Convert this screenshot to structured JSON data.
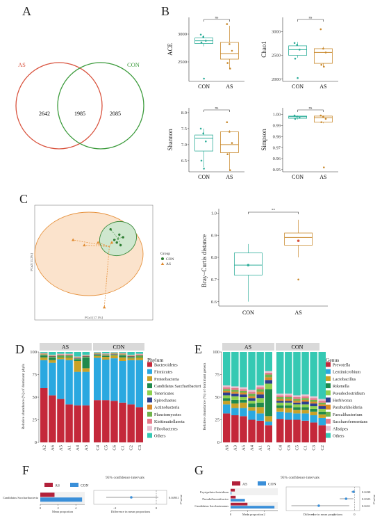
{
  "panels": {
    "A": {
      "label": "A",
      "set1": "AS",
      "set2": "CON",
      "only1": "2642",
      "both": "1985",
      "only2": "2085",
      "colors": {
        "AS": "#d9533e",
        "CON": "#3a9a3a"
      }
    },
    "B": {
      "label": "B",
      "groups": [
        "CON",
        "AS"
      ],
      "sig": "ns",
      "colors": {
        "CON": "#2fae9a",
        "AS": "#c98a2e"
      },
      "plots": [
        {
          "metric": "ACE",
          "ticks": [
            "2500",
            "3000"
          ],
          "ylim": [
            2150,
            3300
          ],
          "CON": {
            "q1": 2830,
            "med": 2880,
            "q3": 2930,
            "min": 2780,
            "max": 2980,
            "points": [
              2990,
              2950,
              2880,
              2850,
              2200
            ]
          },
          "AS": {
            "q1": 2550,
            "med": 2650,
            "q3": 2850,
            "min": 2380,
            "max": 3150,
            "points": [
              3180,
              2820,
              2700,
              2480,
              2380
            ]
          }
        },
        {
          "metric": "Chao1",
          "ticks": [
            "2000",
            "2500",
            "3000"
          ],
          "ylim": [
            1950,
            3300
          ],
          "CON": {
            "q1": 2500,
            "med": 2620,
            "q3": 2700,
            "min": 2450,
            "max": 2780,
            "points": [
              2760,
              2720,
              2620,
              2430,
              2020
            ]
          },
          "AS": {
            "q1": 2330,
            "med": 2560,
            "q3": 2640,
            "min": 2250,
            "max": 2680,
            "points": [
              3050,
              2640,
              2560,
              2300,
              2260
            ]
          }
        },
        {
          "metric": "Shannon",
          "ticks": [
            "6.5",
            "7.0",
            "7.5",
            "8.0"
          ],
          "ylim": [
            6.15,
            8.15
          ],
          "CON": {
            "q1": 6.8,
            "med": 7.2,
            "q3": 7.3,
            "min": 6.3,
            "max": 7.5,
            "points": [
              7.5,
              7.35,
              7.1,
              6.5,
              6.25
            ]
          },
          "AS": {
            "q1": 6.75,
            "med": 7.0,
            "q3": 7.4,
            "min": 6.2,
            "max": 7.45,
            "points": [
              7.7,
              7.4,
              7.05,
              6.7,
              6.2
            ]
          }
        },
        {
          "metric": "Simpson",
          "ticks": [
            "0.95",
            "0.96",
            "0.97",
            "0.98",
            "0.99",
            "1.00"
          ],
          "ylim": [
            0.948,
            1.006
          ],
          "CON": {
            "q1": 0.9965,
            "med": 0.998,
            "q3": 0.9985,
            "min": 0.9955,
            "max": 0.999,
            "points": [
              0.999,
              0.998,
              0.997,
              0.996
            ]
          },
          "AS": {
            "q1": 0.993,
            "med": 0.997,
            "q3": 0.9985,
            "min": 0.992,
            "max": 0.999,
            "points": [
              0.999,
              0.998,
              0.996,
              0.993,
              0.952
            ]
          }
        }
      ]
    },
    "C": {
      "label": "C",
      "xlabel": "PCo1 [17.1%]",
      "ylabel": "PCo2 [11.2%]",
      "legend_title": "Group",
      "groups": [
        "CON",
        "AS"
      ],
      "con_points": [
        [
          -0.05,
          0.27
        ],
        [
          0.02,
          0.23
        ],
        [
          0.05,
          0.21
        ],
        [
          0.0,
          0.17
        ],
        [
          0.03,
          0.15
        ],
        [
          -0.02,
          0.19
        ]
      ],
      "con_center": [
        0.01,
        0.2
      ],
      "as_points": [
        [
          -0.35,
          0.19
        ],
        [
          -0.26,
          0.15
        ],
        [
          -0.15,
          0.17
        ],
        [
          -0.04,
          0.17
        ],
        [
          -0.1,
          -0.32
        ]
      ],
      "as_center": [
        -0.06,
        0.14
      ],
      "bray": {
        "ylabel": "Bray−Curtis distance",
        "ticks": [
          "0.6",
          "0.7",
          "0.8",
          "0.9",
          "1.0"
        ],
        "ylim": [
          0.58,
          1.02
        ],
        "sig": "**",
        "CON": {
          "q1": 0.72,
          "med": 0.765,
          "q3": 0.82,
          "min": 0.6,
          "max": 0.86,
          "mean": 0.765
        },
        "AS": {
          "q1": 0.855,
          "med": 0.89,
          "q3": 0.91,
          "min": 0.8,
          "max": 0.97,
          "mean": 0.875,
          "outlier": 0.7
        }
      }
    },
    "D": {
      "label": "D",
      "ylabel": "Relative abundance (%) of dominant phyla",
      "ticks": [
        "0",
        "25",
        "50",
        "75",
        "100"
      ],
      "strip_left": "AS",
      "strip_right": "CON",
      "legend_title": "Phylum",
      "taxa": [
        "Bacteroidetes",
        "Firmicutes",
        "Proteobacteria",
        "Candidatus Saccharibacteri",
        "Tenericutes",
        "Spirochaetes",
        "Actinobacteria",
        "Planctomycetes",
        "Kiritimatiellaeota",
        "Fibrobacteres",
        "Others"
      ],
      "colors": [
        "#c4283a",
        "#2aa8e0",
        "#c9a227",
        "#1f8a4c",
        "#8ed14f",
        "#2c3e8f",
        "#d98b2b",
        "#6fb24b",
        "#e6798a",
        "#e7c0d0",
        "#35c9b3"
      ]
    },
    "E": {
      "label": "E",
      "ylabel": "Relative abundance (%) of dominant genera",
      "ticks": [
        "0",
        "25",
        "50",
        "75",
        "100"
      ],
      "strip_left": "AS",
      "strip_right": "CON",
      "legend_title": "Genus",
      "taxa": [
        "Prevotella",
        "Lentimicrobium",
        "Lactobacillus",
        "Rikenella",
        "Pseudoclostridium",
        "Herbivorax",
        "Paraburkholderia",
        "Faecalibacterium",
        "Saccharofermentans",
        "Alistipes",
        "Others"
      ],
      "colors": [
        "#c4283a",
        "#2aa8e0",
        "#c9a227",
        "#1f8a4c",
        "#8ed14f",
        "#2c3e8f",
        "#d98b2b",
        "#6fb24b",
        "#e6798a",
        "#e7c0d0",
        "#35c9b3"
      ]
    },
    "F": {
      "label": "F",
      "title": "95% confidence intervals",
      "legend": [
        "AS",
        "CON"
      ],
      "rows": [
        "Candidatus Saccharibacteria"
      ],
      "xlabel1": "Mean proportion",
      "xlabel2": "Difference in mean proportions",
      "pval_label": "P-value",
      "pvals": [
        "0.04931"
      ],
      "axis1_ticks": [
        "0",
        "2",
        "4"
      ],
      "axis2_ticks": [
        "−2",
        "0"
      ]
    },
    "G": {
      "label": "G",
      "title": "95% confidence intervals",
      "legend": [
        "AS",
        "CON"
      ],
      "rows": [
        "Erysipelatoclostridium",
        "Pseudoflavonifractor",
        "Candidatus Saccharimonas"
      ],
      "xlabel1": "Mean proportion",
      "xlabel2": "Difference in mean proportions",
      "pval_label": "P-value",
      "pvals": [
        "0.0438",
        "0.0323",
        "0.0411"
      ],
      "axis1_ticks": [
        "0",
        "1",
        "2"
      ],
      "axis2_ticks": [
        "−4",
        "−2",
        "0"
      ]
    }
  },
  "stack_data": {
    "D": {
      "as_samples": [
        "A2",
        "A6",
        "A5",
        "A1",
        "A4",
        "A3"
      ],
      "con_samples": [
        "C4",
        "C5",
        "C6",
        "C1",
        "C2",
        "C3"
      ],
      "as": [
        [
          60,
          31,
          3,
          2,
          0.5,
          0.5,
          0.5,
          0.5,
          0.5,
          0.5,
          1
        ],
        [
          52,
          36,
          3,
          3,
          0.5,
          0.5,
          0.5,
          0.5,
          0.5,
          0.5,
          3
        ],
        [
          48,
          44,
          2,
          1,
          0.5,
          0.5,
          0.5,
          0.5,
          0.5,
          0.5,
          2
        ],
        [
          42,
          49,
          3,
          1,
          0.5,
          0.5,
          0.5,
          0.5,
          0.5,
          0.5,
          2
        ],
        [
          41,
          37,
          12,
          2,
          0.5,
          0.5,
          0.5,
          0.5,
          0.5,
          0.5,
          5
        ],
        [
          41,
          37,
          4,
          12,
          0.5,
          0.5,
          0.5,
          0.5,
          0.5,
          0.5,
          3
        ]
      ],
      "con": [
        [
          47,
          47,
          2,
          1,
          0.5,
          0.5,
          0.5,
          0.5,
          0.5,
          0.5,
          0.5
        ],
        [
          47,
          45,
          3,
          1,
          0.5,
          0.5,
          0.5,
          0.5,
          0.5,
          0.5,
          1.5
        ],
        [
          46,
          47,
          3,
          0.5,
          0.5,
          0.5,
          0.5,
          0.5,
          0.5,
          0.5,
          0.5
        ],
        [
          44,
          46,
          4,
          2,
          0.5,
          0.5,
          0.5,
          0.5,
          0.5,
          0.5,
          1
        ],
        [
          42,
          49,
          2,
          1,
          0.5,
          0.5,
          0.5,
          0.5,
          0.5,
          0.5,
          3
        ],
        [
          39,
          52,
          3,
          1,
          0.5,
          0.5,
          0.5,
          0.5,
          0.5,
          0.5,
          2
        ]
      ]
    },
    "E": {
      "as_samples": [
        "A6",
        "A3",
        "A5",
        "A4",
        "A1",
        "A2"
      ],
      "con_samples": [
        "C4",
        "C6",
        "C5",
        "C1",
        "C3",
        "C2"
      ],
      "as": [
        [
          32,
          10,
          4,
          3,
          3,
          3,
          2,
          2,
          2,
          2,
          37
        ],
        [
          30,
          8,
          5,
          4,
          4,
          3,
          2,
          2,
          2,
          2,
          38
        ],
        [
          29,
          9,
          6,
          3,
          3,
          3,
          2,
          2,
          2,
          2,
          39
        ],
        [
          25,
          10,
          4,
          4,
          3,
          3,
          2,
          3,
          2,
          2,
          42
        ],
        [
          24,
          8,
          7,
          5,
          5,
          4,
          3,
          3,
          2,
          2,
          37
        ],
        [
          19,
          4,
          6,
          30,
          6,
          4,
          3,
          3,
          2,
          2,
          21
        ]
      ],
      "con": [
        [
          26,
          8,
          4,
          3,
          3,
          2,
          2,
          2,
          2,
          2,
          46
        ],
        [
          25,
          8,
          5,
          3,
          3,
          2,
          2,
          2,
          2,
          2,
          46
        ],
        [
          25,
          7,
          4,
          3,
          3,
          2,
          2,
          2,
          2,
          2,
          48
        ],
        [
          24,
          8,
          4,
          3,
          3,
          3,
          2,
          2,
          2,
          2,
          47
        ],
        [
          22,
          8,
          4,
          3,
          3,
          3,
          2,
          2,
          2,
          2,
          49
        ],
        [
          19,
          8,
          4,
          3,
          3,
          3,
          2,
          2,
          2,
          2,
          52
        ]
      ]
    },
    "F_bars": [
      {
        "as": 1.6,
        "con": 4.7,
        "diff": -1.2,
        "lo": -2.4,
        "hi": 0.1
      }
    ],
    "G_bars": [
      {
        "as": 0.25,
        "con": 0.05,
        "diff": -0.1,
        "lo": -0.3,
        "hi": 0.05
      },
      {
        "as": 0.3,
        "con": 0.85,
        "diff": -0.8,
        "lo": -1.4,
        "hi": -0.1
      },
      {
        "as": 1.0,
        "con": 2.6,
        "diff": -3.4,
        "lo": -6.0,
        "hi": -0.5
      }
    ]
  }
}
